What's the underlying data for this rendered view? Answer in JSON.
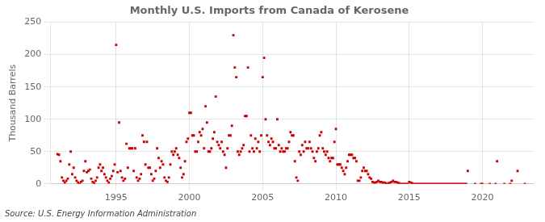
{
  "chart_data": {
    "type": "scatter",
    "title": "Monthly U.S. Imports from Canada of Kerosene",
    "ylabel": "Thousand Barrels",
    "annotation": "Source: U.S. Energy Information Administration",
    "color": "#cc0000",
    "marker": "square",
    "grid": true,
    "xlim": [
      1990.5,
      2023.5
    ],
    "xticks": [
      1995,
      2000,
      2005,
      2010,
      2015,
      2020
    ],
    "ylim": [
      0,
      250
    ],
    "yticks": [
      0,
      50,
      100,
      150,
      200,
      250
    ],
    "x": [
      1991.0,
      1991.1,
      1991.2,
      1991.3,
      1991.4,
      1991.5,
      1991.6,
      1991.7,
      1991.8,
      1991.9,
      1992.0,
      1992.1,
      1992.2,
      1992.3,
      1992.4,
      1992.5,
      1992.6,
      1992.7,
      1992.8,
      1992.9,
      1993.0,
      1993.1,
      1993.2,
      1993.3,
      1993.4,
      1993.5,
      1993.6,
      1993.7,
      1993.8,
      1993.9,
      1994.0,
      1994.1,
      1994.2,
      1994.3,
      1994.4,
      1994.5,
      1994.6,
      1994.7,
      1994.8,
      1994.9,
      1995.0,
      1995.1,
      1995.2,
      1995.3,
      1995.4,
      1995.5,
      1995.6,
      1995.7,
      1995.8,
      1995.9,
      1996.0,
      1996.1,
      1996.2,
      1996.3,
      1996.4,
      1996.5,
      1996.6,
      1996.7,
      1996.8,
      1996.9,
      1997.0,
      1997.1,
      1997.2,
      1997.3,
      1997.4,
      1997.5,
      1997.6,
      1997.7,
      1997.8,
      1997.9,
      1998.0,
      1998.1,
      1998.2,
      1998.3,
      1998.4,
      1998.5,
      1998.6,
      1998.7,
      1998.8,
      1998.9,
      1999.0,
      1999.1,
      1999.2,
      1999.3,
      1999.4,
      1999.5,
      1999.6,
      1999.7,
      1999.8,
      1999.9,
      2000.0,
      2000.1,
      2000.2,
      2000.3,
      2000.4,
      2000.5,
      2000.6,
      2000.7,
      2000.8,
      2000.9,
      2001.0,
      2001.1,
      2001.2,
      2001.3,
      2001.4,
      2001.5,
      2001.6,
      2001.7,
      2001.8,
      2001.9,
      2002.0,
      2002.1,
      2002.2,
      2002.3,
      2002.4,
      2002.5,
      2002.6,
      2002.7,
      2002.8,
      2002.9,
      2003.0,
      2003.1,
      2003.2,
      2003.3,
      2003.4,
      2003.5,
      2003.6,
      2003.7,
      2003.8,
      2003.9,
      2004.0,
      2004.1,
      2004.2,
      2004.3,
      2004.4,
      2004.5,
      2004.6,
      2004.7,
      2004.8,
      2004.9,
      2005.0,
      2005.1,
      2005.2,
      2005.3,
      2005.4,
      2005.5,
      2005.6,
      2005.7,
      2005.8,
      2005.9,
      2006.0,
      2006.1,
      2006.2,
      2006.3,
      2006.4,
      2006.5,
      2006.6,
      2006.7,
      2006.8,
      2006.9,
      2007.0,
      2007.1,
      2007.2,
      2007.3,
      2007.4,
      2007.5,
      2007.6,
      2007.7,
      2007.8,
      2007.9,
      2008.0,
      2008.1,
      2008.2,
      2008.3,
      2008.4,
      2008.5,
      2008.6,
      2008.7,
      2008.8,
      2008.9,
      2009.0,
      2009.1,
      2009.2,
      2009.3,
      2009.4,
      2009.5,
      2009.6,
      2009.7,
      2009.8,
      2009.9,
      2010.0,
      2010.1,
      2010.2,
      2010.3,
      2010.4,
      2010.5,
      2010.6,
      2010.7,
      2010.8,
      2010.9,
      2011.0,
      2011.1,
      2011.2,
      2011.3,
      2011.4,
      2011.5,
      2011.6,
      2011.7,
      2011.8,
      2011.9,
      2012.0,
      2012.1,
      2012.2,
      2012.3,
      2012.4,
      2012.5,
      2012.6,
      2012.7,
      2012.8,
      2012.9,
      2013.0,
      2013.1,
      2013.2,
      2013.3,
      2013.4,
      2013.5,
      2013.6,
      2013.7,
      2013.8,
      2013.9,
      2014.0,
      2014.1,
      2014.2,
      2014.3,
      2014.4,
      2014.5,
      2014.6,
      2014.7,
      2014.8,
      2014.9,
      2015.0,
      2015.1,
      2015.2,
      2015.3,
      2015.4,
      2015.5,
      2015.6,
      2015.7,
      2015.8,
      2015.9,
      2016.0,
      2016.1,
      2016.2,
      2016.3,
      2016.4,
      2016.5,
      2016.6,
      2016.7,
      2016.8,
      2016.9,
      2017.0,
      2017.1,
      2017.2,
      2017.3,
      2017.4,
      2017.5,
      2017.6,
      2017.7,
      2017.8,
      2017.9,
      2018.0,
      2018.1,
      2018.2,
      2018.3,
      2018.4,
      2018.5,
      2018.6,
      2018.7,
      2018.8,
      2018.9,
      2019.0,
      2019.5,
      2019.9,
      2020.0,
      2020.5,
      2020.9,
      2021.0,
      2021.5,
      2021.9,
      2022.0,
      2022.4,
      2022.9
    ],
    "values": [
      46,
      45,
      35,
      10,
      5,
      2,
      5,
      8,
      30,
      50,
      15,
      25,
      10,
      5,
      2,
      0,
      3,
      5,
      20,
      35,
      18,
      20,
      22,
      8,
      3,
      1,
      5,
      10,
      25,
      30,
      20,
      25,
      15,
      10,
      5,
      2,
      8,
      12,
      20,
      30,
      215,
      18,
      95,
      20,
      10,
      5,
      8,
      62,
      25,
      55,
      55,
      55,
      20,
      55,
      10,
      5,
      8,
      15,
      75,
      65,
      30,
      65,
      25,
      25,
      15,
      5,
      8,
      20,
      55,
      40,
      25,
      35,
      30,
      10,
      5,
      3,
      10,
      30,
      50,
      45,
      50,
      55,
      45,
      40,
      25,
      10,
      15,
      35,
      65,
      70,
      110,
      110,
      75,
      75,
      50,
      50,
      65,
      80,
      75,
      85,
      55,
      120,
      95,
      50,
      50,
      55,
      70,
      80,
      135,
      65,
      60,
      55,
      65,
      50,
      45,
      25,
      55,
      75,
      75,
      90,
      230,
      180,
      165,
      50,
      45,
      50,
      55,
      60,
      105,
      105,
      180,
      50,
      75,
      55,
      50,
      70,
      55,
      65,
      50,
      75,
      165,
      195,
      100,
      75,
      65,
      60,
      70,
      65,
      55,
      55,
      100,
      60,
      50,
      55,
      50,
      50,
      55,
      55,
      65,
      80,
      75,
      75,
      35,
      10,
      5,
      50,
      45,
      60,
      50,
      65,
      55,
      55,
      65,
      55,
      50,
      40,
      35,
      50,
      55,
      75,
      80,
      55,
      50,
      45,
      50,
      40,
      35,
      40,
      40,
      65,
      85,
      30,
      30,
      30,
      25,
      20,
      15,
      25,
      35,
      45,
      45,
      45,
      40,
      40,
      35,
      5,
      5,
      10,
      20,
      25,
      20,
      20,
      15,
      10,
      8,
      3,
      2,
      2,
      3,
      5,
      3,
      3,
      2,
      2,
      1,
      0,
      1,
      2,
      3,
      5,
      3,
      3,
      2,
      1,
      0,
      0,
      0,
      0,
      0,
      0,
      3,
      2,
      1,
      0,
      0,
      0,
      0,
      0,
      0,
      0,
      0,
      0,
      0,
      0,
      0,
      0,
      0,
      0,
      0,
      0,
      0,
      0,
      0,
      0,
      0,
      0,
      0,
      0,
      0,
      0,
      0,
      0,
      0,
      0,
      0,
      0,
      0,
      0,
      0,
      0,
      20,
      0,
      0,
      0,
      0,
      0,
      35,
      0,
      0,
      5,
      20,
      0
    ]
  }
}
